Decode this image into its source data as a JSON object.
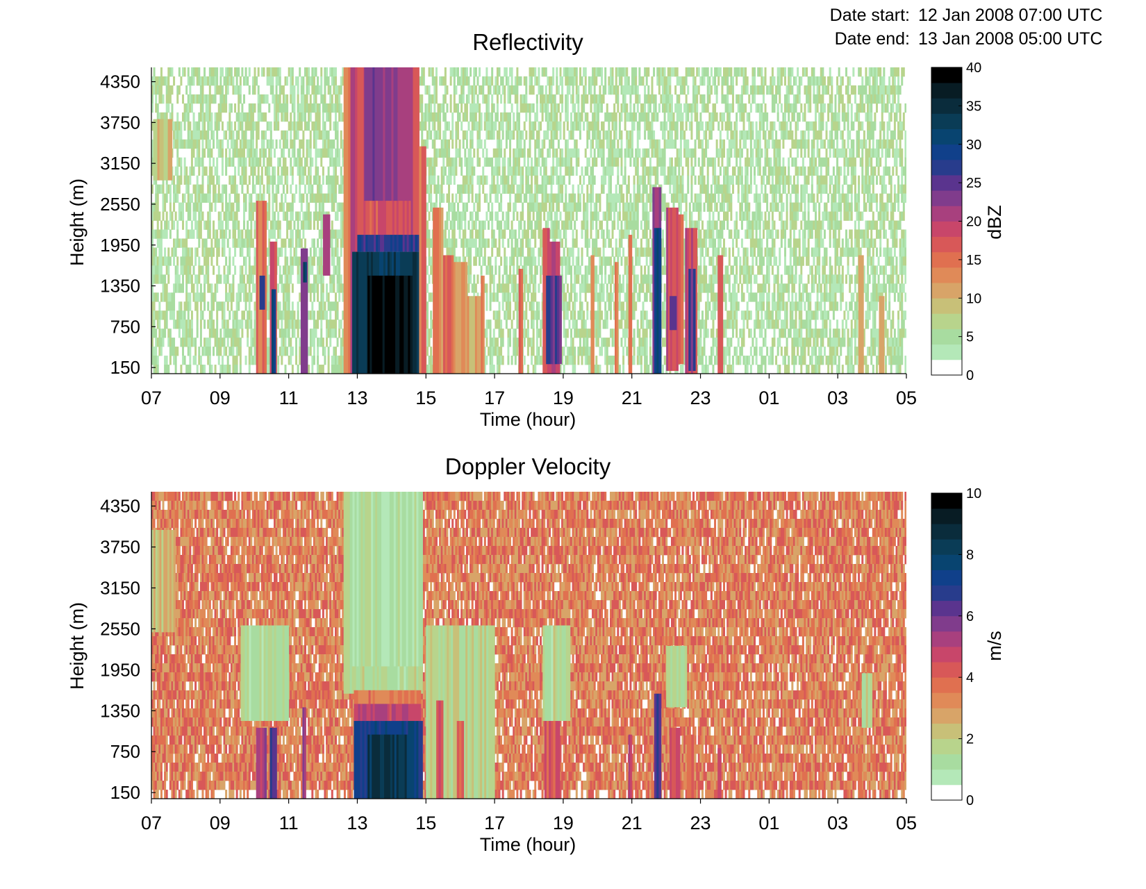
{
  "header": {
    "date_start_label": "Date start:",
    "date_start_value": "12 Jan 2008 07:00 UTC",
    "date_end_label": "Date end:",
    "date_end_value": "13 Jan 2008 05:00 UTC"
  },
  "colors": {
    "ramp": [
      "#ffffff",
      "#c8f2dc",
      "#b4e8b8",
      "#a8dca0",
      "#b8d48c",
      "#c8c078",
      "#d8a468",
      "#e08a58",
      "#e07050",
      "#d85858",
      "#c8466a",
      "#a8407e",
      "#803c8c",
      "#5a348e",
      "#283c8c",
      "#10408a",
      "#084470",
      "#0a3c56",
      "#0a2c3c",
      "#081c24",
      "#000000"
    ],
    "reflectivity_background_levels": [
      2,
      3,
      4
    ],
    "velocity_background_levels": [
      6,
      7,
      8,
      9
    ]
  },
  "chart_data": [
    {
      "type": "heatmap",
      "title": "Reflectivity",
      "xlabel": "Time (hour)",
      "ylabel": "Height (m)",
      "x_ticks": [
        "07",
        "09",
        "11",
        "13",
        "15",
        "17",
        "19",
        "21",
        "23",
        "01",
        "03",
        "05"
      ],
      "x_range_hours": [
        7,
        29
      ],
      "y_ticks": [
        150,
        750,
        1350,
        1950,
        2550,
        3150,
        3750,
        4350
      ],
      "y_range": [
        60,
        4560
      ],
      "colorbar": {
        "label": "dBZ",
        "min": 0,
        "max": 40,
        "ticks": [
          0,
          5,
          10,
          15,
          20,
          25,
          30,
          35,
          40
        ]
      },
      "features": [
        {
          "t0": 7.05,
          "t1": 7.6,
          "h0": 2900,
          "h1": 3800,
          "value": 9
        },
        {
          "t0": 10.05,
          "t1": 10.35,
          "h0": 60,
          "h1": 2600,
          "value": 16
        },
        {
          "t0": 10.15,
          "t1": 10.3,
          "h0": 1000,
          "h1": 1500,
          "value": 25
        },
        {
          "t0": 10.45,
          "t1": 10.65,
          "h0": 60,
          "h1": 2000,
          "value": 18
        },
        {
          "t0": 10.5,
          "t1": 10.62,
          "h0": 60,
          "h1": 1300,
          "value": 30
        },
        {
          "t0": 11.35,
          "t1": 11.55,
          "h0": 60,
          "h1": 1900,
          "value": 22
        },
        {
          "t0": 11.42,
          "t1": 11.52,
          "h0": 1400,
          "h1": 1700,
          "value": 32
        },
        {
          "t0": 12.0,
          "t1": 12.2,
          "h0": 1500,
          "h1": 2400,
          "value": 20
        },
        {
          "t0": 12.6,
          "t1": 12.8,
          "h0": 60,
          "h1": 4560,
          "value": 14
        },
        {
          "t0": 12.8,
          "t1": 13.0,
          "h0": 60,
          "h1": 4560,
          "value": 20
        },
        {
          "t0": 13.0,
          "t1": 14.8,
          "h0": 1900,
          "h1": 4560,
          "value": 18
        },
        {
          "t0": 13.2,
          "t1": 14.6,
          "h0": 2600,
          "h1": 4560,
          "value": 22
        },
        {
          "t0": 13.0,
          "t1": 14.8,
          "h0": 1850,
          "h1": 2100,
          "value": 27
        },
        {
          "t0": 12.85,
          "t1": 14.85,
          "h0": 60,
          "h1": 1850,
          "value": 33
        },
        {
          "t0": 13.3,
          "t1": 14.6,
          "h0": 60,
          "h1": 1500,
          "value": 39
        },
        {
          "t0": 14.8,
          "t1": 15.0,
          "h0": 60,
          "h1": 3400,
          "value": 15
        },
        {
          "t0": 15.2,
          "t1": 15.5,
          "h0": 60,
          "h1": 2500,
          "value": 14
        },
        {
          "t0": 15.5,
          "t1": 15.8,
          "h0": 60,
          "h1": 1800,
          "value": 16
        },
        {
          "t0": 15.8,
          "t1": 16.2,
          "h0": 60,
          "h1": 1700,
          "value": 13
        },
        {
          "t0": 16.2,
          "t1": 16.6,
          "h0": 60,
          "h1": 1200,
          "value": 11
        },
        {
          "t0": 16.6,
          "t1": 16.7,
          "h0": 60,
          "h1": 1500,
          "value": 13
        },
        {
          "t0": 17.7,
          "t1": 17.82,
          "h0": 60,
          "h1": 1600,
          "value": 16
        },
        {
          "t0": 18.4,
          "t1": 18.6,
          "h0": 60,
          "h1": 2200,
          "value": 17
        },
        {
          "t0": 18.6,
          "t1": 18.9,
          "h0": 60,
          "h1": 2000,
          "value": 20
        },
        {
          "t0": 18.5,
          "t1": 18.95,
          "h0": 200,
          "h1": 1500,
          "value": 26
        },
        {
          "t0": 19.8,
          "t1": 19.9,
          "h0": 60,
          "h1": 1800,
          "value": 13
        },
        {
          "t0": 20.5,
          "t1": 20.6,
          "h0": 60,
          "h1": 1700,
          "value": 14
        },
        {
          "t0": 20.9,
          "t1": 21.0,
          "h0": 60,
          "h1": 2100,
          "value": 16
        },
        {
          "t0": 21.6,
          "t1": 21.85,
          "h0": 60,
          "h1": 2800,
          "value": 22
        },
        {
          "t0": 21.65,
          "t1": 21.85,
          "h0": 60,
          "h1": 2200,
          "value": 30
        },
        {
          "t0": 22.0,
          "t1": 22.35,
          "h0": 100,
          "h1": 2500,
          "value": 18
        },
        {
          "t0": 22.1,
          "t1": 22.3,
          "h0": 700,
          "h1": 1200,
          "value": 25
        },
        {
          "t0": 22.35,
          "t1": 22.5,
          "h0": 200,
          "h1": 2400,
          "value": 16
        },
        {
          "t0": 22.55,
          "t1": 22.9,
          "h0": 60,
          "h1": 2200,
          "value": 18
        },
        {
          "t0": 22.65,
          "t1": 22.85,
          "h0": 100,
          "h1": 1600,
          "value": 26
        },
        {
          "t0": 23.5,
          "t1": 23.65,
          "h0": 60,
          "h1": 1800,
          "value": 16
        },
        {
          "t0": 27.6,
          "t1": 27.75,
          "h0": 60,
          "h1": 1800,
          "value": 10
        },
        {
          "t0": 28.2,
          "t1": 28.35,
          "h0": 60,
          "h1": 1200,
          "value": 10
        }
      ]
    },
    {
      "type": "heatmap",
      "title": "Doppler Velocity",
      "xlabel": "Time (hour)",
      "ylabel": "Height (m)",
      "x_ticks": [
        "07",
        "09",
        "11",
        "13",
        "15",
        "17",
        "19",
        "21",
        "23",
        "01",
        "03",
        "05"
      ],
      "x_range_hours": [
        7,
        29
      ],
      "y_ticks": [
        150,
        750,
        1350,
        1950,
        2550,
        3150,
        3750,
        4350
      ],
      "y_range": [
        60,
        4560
      ],
      "colorbar": {
        "label": "m/s",
        "min": 0,
        "max": 10,
        "ticks": [
          0,
          2,
          4,
          6,
          8,
          10
        ]
      },
      "features": [
        {
          "t0": 7.0,
          "t1": 7.7,
          "h0": 2500,
          "h1": 4000,
          "value": 2.3
        },
        {
          "t0": 9.6,
          "t1": 11.0,
          "h0": 1200,
          "h1": 2600,
          "value": 1.5
        },
        {
          "t0": 10.05,
          "t1": 10.35,
          "h0": 60,
          "h1": 1100,
          "value": 5.5
        },
        {
          "t0": 10.45,
          "t1": 10.65,
          "h0": 60,
          "h1": 1100,
          "value": 6.5
        },
        {
          "t0": 11.4,
          "t1": 11.5,
          "h0": 60,
          "h1": 1400,
          "value": 5.0
        },
        {
          "t0": 12.6,
          "t1": 14.9,
          "h0": 1600,
          "h1": 4560,
          "value": 1.5
        },
        {
          "t0": 12.8,
          "t1": 14.9,
          "h0": 2000,
          "h1": 4560,
          "value": 1.2
        },
        {
          "t0": 12.9,
          "t1": 14.85,
          "h0": 1450,
          "h1": 1650,
          "value": 3.5
        },
        {
          "t0": 12.9,
          "t1": 14.85,
          "h0": 1200,
          "h1": 1450,
          "value": 5.0
        },
        {
          "t0": 12.9,
          "t1": 14.9,
          "h0": 60,
          "h1": 1200,
          "value": 7.3
        },
        {
          "t0": 13.3,
          "t1": 14.5,
          "h0": 60,
          "h1": 1000,
          "value": 8.5
        },
        {
          "t0": 15.0,
          "t1": 17.0,
          "h0": 60,
          "h1": 2600,
          "value": 1.6
        },
        {
          "t0": 15.3,
          "t1": 15.5,
          "h0": 60,
          "h1": 1500,
          "value": 4.5
        },
        {
          "t0": 15.9,
          "t1": 16.1,
          "h0": 60,
          "h1": 1200,
          "value": 4.0
        },
        {
          "t0": 18.4,
          "t1": 19.2,
          "h0": 1200,
          "h1": 2600,
          "value": 1.5
        },
        {
          "t0": 18.45,
          "t1": 18.9,
          "h0": 60,
          "h1": 1200,
          "value": 4.5
        },
        {
          "t0": 20.9,
          "t1": 21.0,
          "h0": 60,
          "h1": 1000,
          "value": 5.5
        },
        {
          "t0": 21.65,
          "t1": 21.85,
          "h0": 60,
          "h1": 1600,
          "value": 6.5
        },
        {
          "t0": 22.0,
          "t1": 22.6,
          "h0": 1400,
          "h1": 2300,
          "value": 1.5
        },
        {
          "t0": 22.1,
          "t1": 22.4,
          "h0": 60,
          "h1": 1100,
          "value": 4.5
        },
        {
          "t0": 22.6,
          "t1": 22.8,
          "h0": 60,
          "h1": 1000,
          "value": 4.0
        },
        {
          "t0": 23.5,
          "t1": 23.6,
          "h0": 60,
          "h1": 800,
          "value": 4.5
        },
        {
          "t0": 27.7,
          "t1": 28.0,
          "h0": 1100,
          "h1": 1900,
          "value": 1.5
        },
        {
          "t0": 27.6,
          "t1": 27.7,
          "h0": 60,
          "h1": 800,
          "value": 4.0
        }
      ]
    }
  ]
}
